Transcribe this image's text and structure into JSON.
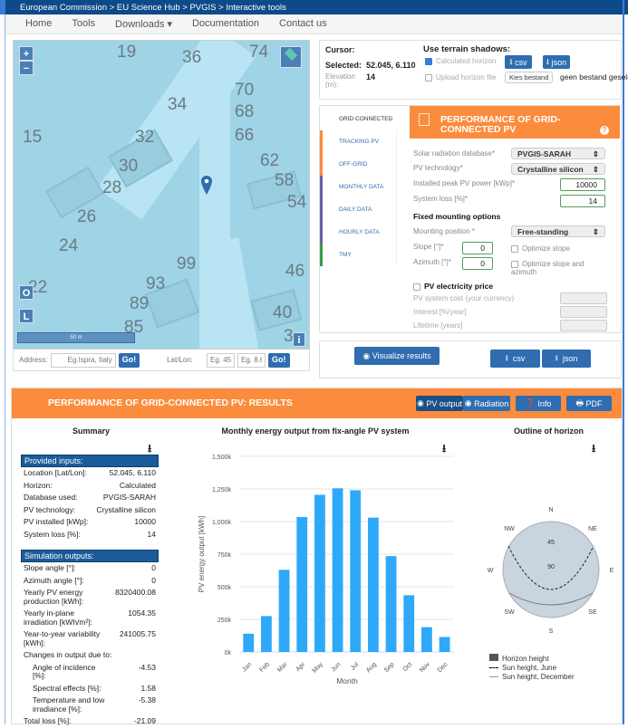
{
  "breadcrumb": "European Commission > EU Science Hub > PVGIS > Interactive tools",
  "nav": [
    "Home",
    "Tools",
    "Downloads ▾",
    "Documentation",
    "Contact us"
  ],
  "map": {
    "labels": [
      [
        "19",
        114,
        2
      ],
      [
        "36",
        186,
        8
      ],
      [
        "74",
        260,
        2
      ],
      [
        "34",
        170,
        60
      ],
      [
        "70",
        244,
        44
      ],
      [
        "68",
        244,
        68
      ],
      [
        "15",
        10,
        96
      ],
      [
        "32",
        134,
        96
      ],
      [
        "66",
        244,
        94
      ],
      [
        "30",
        116,
        128
      ],
      [
        "62",
        272,
        122
      ],
      [
        "28",
        98,
        152
      ],
      [
        "58",
        288,
        144
      ],
      [
        "54",
        302,
        168
      ],
      [
        "26",
        70,
        184
      ],
      [
        "24",
        50,
        216
      ],
      [
        "99",
        180,
        236
      ],
      [
        "46",
        300,
        244
      ],
      [
        "93",
        146,
        258
      ],
      [
        "22",
        16,
        262
      ],
      [
        "89",
        128,
        280
      ],
      [
        "40",
        286,
        290
      ],
      [
        "85",
        122,
        306
      ],
      [
        "3",
        298,
        316
      ]
    ],
    "zoom_in": "+",
    "zoom_out": "−",
    "btn_o": "O",
    "btn_l": "L",
    "btn_i": "i",
    "scale": "50 m",
    "marker_color": "#2f6db0"
  },
  "address": {
    "label": "Address:",
    "placeholder": "Eg.Ispra, Italy",
    "go": "Go!",
    "latlon_label": "Lat/Lon:",
    "lat_placeholder": "Eg. 45.",
    "lon_placeholder": "Eg. 8.6",
    "go2": "Go!"
  },
  "cursor": {
    "title": "Cursor:",
    "selected_label": "Selected:",
    "selected_value": "52.045, 6.110",
    "elevation_label": "Elevation (m):",
    "elevation_value": "14",
    "terrain_title": "Use terrain shadows:",
    "calc_horizon": "Calculated horizon",
    "upload_horizon": "Upload horizon file",
    "csv": "csv",
    "json": "json",
    "file_button": "Kies bestand",
    "file_status": "geen bestand geselecteerd"
  },
  "tabs": [
    {
      "label": "GRID CONNECTED",
      "color": "#ffffff"
    },
    {
      "label": "TRACKING PV",
      "color": "#fb8c3e"
    },
    {
      "label": "OFF-GRID",
      "color": "#fb8c3e"
    },
    {
      "label": "MONTHLY DATA",
      "color": "#6a5fa8"
    },
    {
      "label": "DAILY DATA",
      "color": "#6a5fa8"
    },
    {
      "label": "HOURLY DATA",
      "color": "#6a5fa8"
    },
    {
      "label": "TMY",
      "color": "#3a9a4a"
    }
  ],
  "form": {
    "title": "PERFORMANCE OF GRID-CONNECTED PV",
    "db_label": "Solar radiation database*",
    "db_value": "PVGIS-SARAH",
    "tech_label": "PV technology*",
    "tech_value": "Crystalline silicon",
    "power_label": "Installed peak PV power [kWp]*",
    "power_value": "10000",
    "loss_label": "System loss [%]*",
    "loss_value": "14",
    "mount_title": "Fixed mounting options",
    "mount_label": "Mounting position *",
    "mount_value": "Free-standing",
    "slope_label": "Slope [°]*",
    "slope_value": "0",
    "azimuth_label": "Azimuth [°]*",
    "azimuth_value": "0",
    "opt_slope": "Optimize slope",
    "opt_both": "Optimize slope and azimuth",
    "price_title": "PV electricity price",
    "cost_label": "PV system cost (your currency)",
    "interest_label": "Interest [%/year]",
    "lifetime_label": "Lifetime [years]"
  },
  "actions": {
    "visualize": "Visualize results",
    "csv": "csv",
    "json": "json"
  },
  "results": {
    "title": "PERFORMANCE OF GRID-CONNECTED PV: RESULTS",
    "pv_output": "PV output",
    "radiation": "Radiation",
    "info": "Info",
    "pdf": "PDF",
    "accent": "#fb8c3e"
  },
  "summary": {
    "title": "Summary",
    "inputs_title": "Provided inputs:",
    "inputs": [
      [
        "Location [Lat/Lon]:",
        "52.045, 6.110"
      ],
      [
        "Horizon:",
        "Calculated"
      ],
      [
        "Database used:",
        "PVGIS-SARAH"
      ],
      [
        "PV technology:",
        "Crystalline silicon"
      ],
      [
        "PV installed [kWp]:",
        "10000"
      ],
      [
        "System loss [%]:",
        "14"
      ]
    ],
    "outputs_title": "Simulation outputs:",
    "outputs": [
      [
        "Slope angle [°]:",
        "0"
      ],
      [
        "Azimuth angle [°]:",
        "0"
      ],
      [
        "Yearly PV energy production [kWh]:",
        "8320400.08"
      ],
      [
        "Yearly in-plane irradiation [kWh/m²]:",
        "1054.35"
      ],
      [
        "Year-to-year variability [kWh]:",
        "241005.75"
      ]
    ],
    "changes_label": "Changes in output due to:",
    "changes": [
      [
        "Angle of incidence [%]:",
        "-4.53"
      ],
      [
        "Spectral effects [%]:",
        "1.58"
      ],
      [
        "Temperature and low irradiance [%]:",
        "-5.38"
      ]
    ],
    "total": [
      "Total loss [%]:",
      "-21.09"
    ]
  },
  "chart_data": [
    {
      "type": "bar",
      "title": "Monthly energy output from fix-angle PV system",
      "xlabel": "Month",
      "ylabel": "PV energy output [kWh]",
      "categories": [
        "Jan",
        "Feb",
        "Mar",
        "Apr",
        "May",
        "Jun",
        "Jul",
        "Aug",
        "Sep",
        "Oct",
        "Nov",
        "Dec"
      ],
      "values": [
        140000,
        275000,
        630000,
        1035000,
        1205000,
        1255000,
        1240000,
        1030000,
        735000,
        435000,
        190000,
        115000
      ],
      "ylim": [
        0,
        1500000
      ],
      "yticks": [
        "0k",
        "250k",
        "500k",
        "750k",
        "1,000k",
        "1,250k",
        "1,500k"
      ],
      "grid": true,
      "color": "#2ea8f8"
    },
    {
      "type": "polar",
      "title": "Outline of horizon",
      "directions": [
        "N",
        "NE",
        "E",
        "SE",
        "S",
        "SW",
        "W",
        "NW"
      ],
      "ring_labels": [
        "45",
        "90"
      ],
      "legend": [
        "Horizon height",
        "Sun height, June",
        "Sun height, December"
      ],
      "legend_placement": "bottom"
    }
  ]
}
